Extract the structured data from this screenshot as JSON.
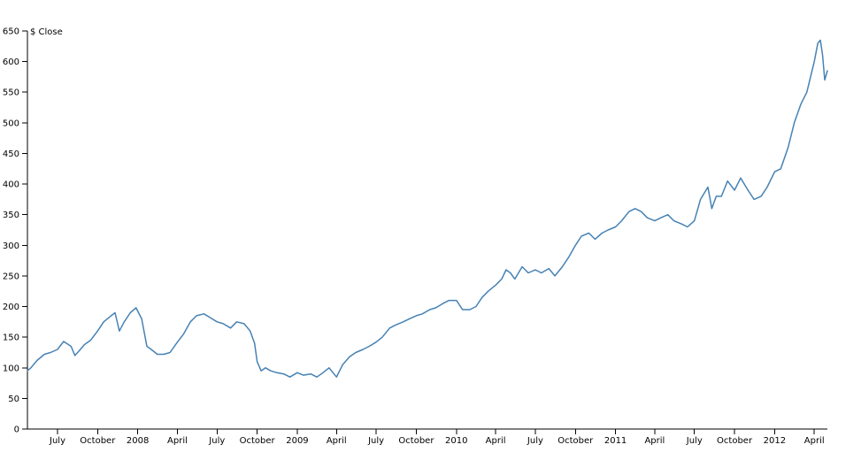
{
  "chart_data": {
    "type": "line",
    "title": "",
    "ylabel": "$ Close",
    "xlabel": "",
    "grid": false,
    "colors": {
      "line": "#4682b4",
      "axis": "#000000"
    },
    "ylim": [
      0,
      650
    ],
    "y_ticks": [
      0,
      50,
      100,
      150,
      200,
      250,
      300,
      350,
      400,
      450,
      500,
      550,
      600,
      650
    ],
    "xlim": [
      "2007-04-23",
      "2012-05-01"
    ],
    "x_ticks": [
      {
        "date": "2007-07-01",
        "label": "July"
      },
      {
        "date": "2007-10-01",
        "label": "October"
      },
      {
        "date": "2008-01-01",
        "label": "2008"
      },
      {
        "date": "2008-04-01",
        "label": "April"
      },
      {
        "date": "2008-07-01",
        "label": "July"
      },
      {
        "date": "2008-10-01",
        "label": "October"
      },
      {
        "date": "2009-01-01",
        "label": "2009"
      },
      {
        "date": "2009-04-01",
        "label": "April"
      },
      {
        "date": "2009-07-01",
        "label": "July"
      },
      {
        "date": "2009-10-01",
        "label": "October"
      },
      {
        "date": "2010-01-01",
        "label": "2010"
      },
      {
        "date": "2010-04-01",
        "label": "April"
      },
      {
        "date": "2010-07-01",
        "label": "July"
      },
      {
        "date": "2010-10-01",
        "label": "October"
      },
      {
        "date": "2011-01-01",
        "label": "2011"
      },
      {
        "date": "2011-04-01",
        "label": "April"
      },
      {
        "date": "2011-07-01",
        "label": "July"
      },
      {
        "date": "2011-10-01",
        "label": "October"
      },
      {
        "date": "2012-01-01",
        "label": "2012"
      },
      {
        "date": "2012-04-01",
        "label": "April"
      }
    ],
    "series": [
      {
        "x": [
          "2007-04-23",
          "2007-05-01",
          "2007-05-15",
          "2007-06-01",
          "2007-06-15",
          "2007-07-01",
          "2007-07-15",
          "2007-08-01",
          "2007-08-10",
          "2007-08-20",
          "2007-09-01",
          "2007-09-15",
          "2007-10-01",
          "2007-10-15",
          "2007-11-01",
          "2007-11-10",
          "2007-11-20",
          "2007-12-01",
          "2007-12-15",
          "2007-12-28",
          "2008-01-10",
          "2008-01-22",
          "2008-02-01",
          "2008-02-15",
          "2008-03-01",
          "2008-03-15",
          "2008-04-01",
          "2008-04-15",
          "2008-05-01",
          "2008-05-15",
          "2008-06-01",
          "2008-06-15",
          "2008-07-01",
          "2008-07-15",
          "2008-08-01",
          "2008-08-15",
          "2008-09-01",
          "2008-09-15",
          "2008-09-25",
          "2008-10-01",
          "2008-10-10",
          "2008-10-20",
          "2008-11-01",
          "2008-11-15",
          "2008-12-01",
          "2008-12-15",
          "2009-01-01",
          "2009-01-15",
          "2009-02-01",
          "2009-02-15",
          "2009-03-01",
          "2009-03-15",
          "2009-04-01",
          "2009-04-15",
          "2009-05-01",
          "2009-05-15",
          "2009-06-01",
          "2009-06-15",
          "2009-07-01",
          "2009-07-15",
          "2009-08-01",
          "2009-08-15",
          "2009-09-01",
          "2009-09-15",
          "2009-10-01",
          "2009-10-15",
          "2009-11-01",
          "2009-11-15",
          "2009-12-01",
          "2009-12-15",
          "2010-01-01",
          "2010-01-15",
          "2010-02-01",
          "2010-02-15",
          "2010-03-01",
          "2010-03-15",
          "2010-04-01",
          "2010-04-15",
          "2010-04-25",
          "2010-05-05",
          "2010-05-15",
          "2010-06-01",
          "2010-06-15",
          "2010-07-01",
          "2010-07-15",
          "2010-08-01",
          "2010-08-15",
          "2010-09-01",
          "2010-09-15",
          "2010-10-01",
          "2010-10-15",
          "2010-11-01",
          "2010-11-15",
          "2010-12-01",
          "2010-12-15",
          "2011-01-01",
          "2011-01-15",
          "2011-02-01",
          "2011-02-15",
          "2011-03-01",
          "2011-03-15",
          "2011-04-01",
          "2011-04-15",
          "2011-05-01",
          "2011-05-15",
          "2011-06-01",
          "2011-06-15",
          "2011-07-01",
          "2011-07-15",
          "2011-08-01",
          "2011-08-10",
          "2011-08-20",
          "2011-09-01",
          "2011-09-15",
          "2011-10-01",
          "2011-10-15",
          "2011-11-01",
          "2011-11-15",
          "2011-12-01",
          "2011-12-15",
          "2012-01-01",
          "2012-01-15",
          "2012-02-01",
          "2012-02-15",
          "2012-03-01",
          "2012-03-15",
          "2012-04-01",
          "2012-04-09",
          "2012-04-15",
          "2012-04-20",
          "2012-04-25",
          "2012-05-01"
        ],
        "values": [
          95,
          100,
          112,
          122,
          125,
          130,
          143,
          135,
          120,
          128,
          138,
          145,
          160,
          175,
          185,
          190,
          160,
          175,
          190,
          198,
          180,
          135,
          130,
          122,
          122,
          125,
          142,
          155,
          175,
          185,
          188,
          182,
          175,
          172,
          165,
          175,
          172,
          160,
          140,
          110,
          95,
          100,
          95,
          92,
          90,
          85,
          92,
          88,
          90,
          85,
          92,
          100,
          85,
          105,
          118,
          125,
          130,
          135,
          142,
          150,
          165,
          170,
          175,
          180,
          185,
          188,
          195,
          198,
          205,
          210,
          210,
          195,
          195,
          200,
          215,
          225,
          235,
          245,
          260,
          255,
          245,
          265,
          255,
          260,
          255,
          262,
          250,
          265,
          280,
          300,
          315,
          320,
          310,
          320,
          325,
          330,
          340,
          355,
          360,
          355,
          345,
          340,
          345,
          350,
          340,
          335,
          330,
          340,
          375,
          395,
          360,
          380,
          380,
          405,
          390,
          410,
          390,
          375,
          380,
          395,
          420,
          425,
          460,
          500,
          530,
          550,
          600,
          630,
          635,
          610,
          570,
          585
        ]
      }
    ]
  }
}
